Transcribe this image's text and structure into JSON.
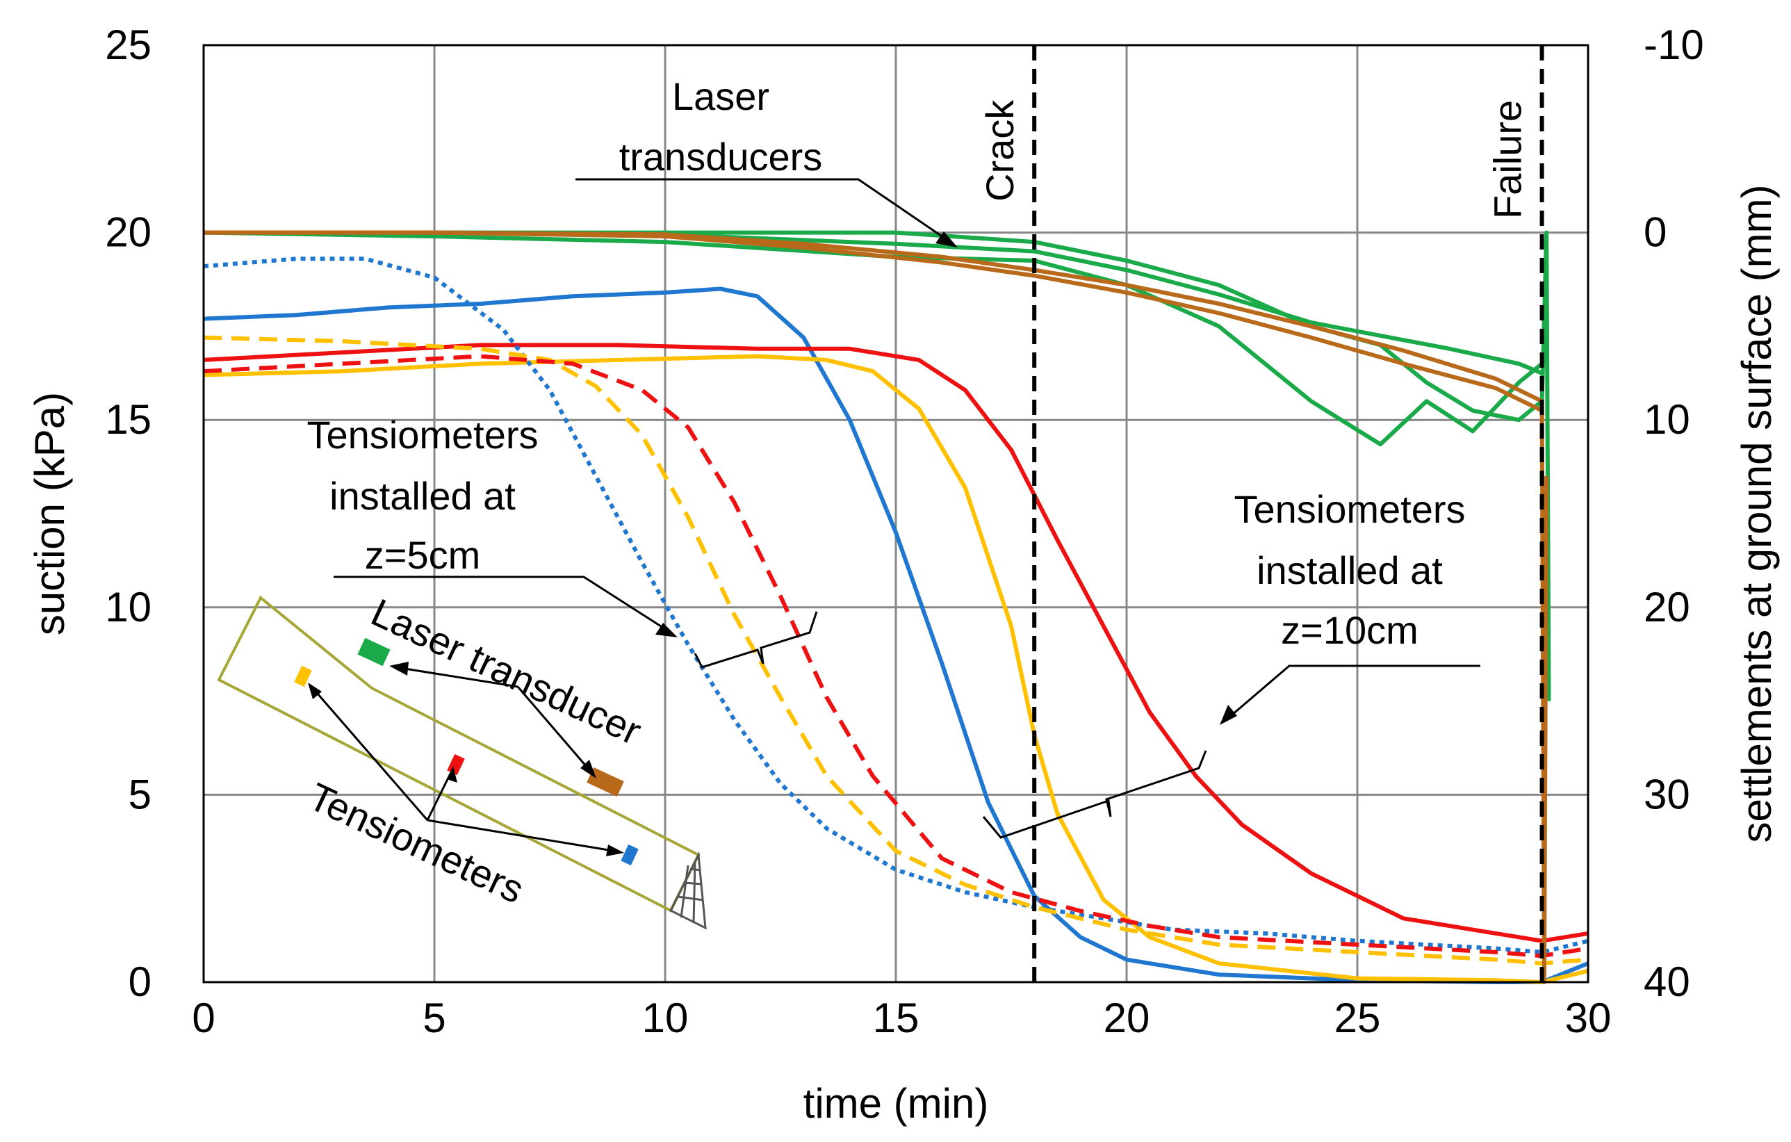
{
  "chart_data": {
    "type": "line",
    "title": "",
    "xlabel": "time (min)",
    "ylabel": "suction (kPa)",
    "y2label": "settlements at ground surface (mm)",
    "xlim": [
      0,
      30
    ],
    "ylim": [
      0,
      25
    ],
    "y2lim": [
      40,
      -10
    ],
    "xticks": [
      0,
      5,
      10,
      15,
      20,
      25,
      30
    ],
    "yticks": [
      0,
      5,
      10,
      15,
      20,
      25
    ],
    "y2ticks": [
      40,
      30,
      20,
      10,
      0,
      -10
    ],
    "grid": true,
    "colors": {
      "blue": "#1f77d0",
      "yellow": "#ffc000",
      "red": "#ee1111",
      "green": "#1aaa4a",
      "brown": "#b8691a",
      "inset": "#a6a638"
    },
    "series": [
      {
        "name": "Tensiometer blue z=10cm",
        "axis": "left",
        "color": "#1f77d0",
        "style": "solid",
        "x": [
          0,
          2,
          4,
          6,
          8,
          10,
          11.2,
          12,
          13,
          14,
          15,
          16,
          17,
          18,
          19,
          20,
          22,
          25,
          28,
          29,
          30
        ],
        "y": [
          17.7,
          17.8,
          18.0,
          18.1,
          18.3,
          18.4,
          18.5,
          18.3,
          17.2,
          15.0,
          12.0,
          8.5,
          4.8,
          2.3,
          1.2,
          0.6,
          0.2,
          0.05,
          0,
          0,
          0.5
        ]
      },
      {
        "name": "Tensiometer yellow z=10cm",
        "axis": "left",
        "color": "#ffc000",
        "style": "solid",
        "x": [
          0,
          3,
          6,
          9,
          12,
          13.5,
          14.5,
          15.5,
          16.5,
          17.5,
          18,
          18.5,
          19.5,
          20.5,
          22,
          25,
          28,
          29,
          30
        ],
        "y": [
          16.2,
          16.3,
          16.5,
          16.6,
          16.7,
          16.6,
          16.3,
          15.3,
          13.2,
          9.5,
          6.6,
          4.5,
          2.2,
          1.2,
          0.5,
          0.1,
          0.05,
          0,
          0.3
        ]
      },
      {
        "name": "Tensiometer red z=10cm",
        "axis": "left",
        "color": "#ee1111",
        "style": "solid",
        "x": [
          0,
          3,
          6,
          9,
          12,
          14,
          15.5,
          16.5,
          17.5,
          18.5,
          19.5,
          20.5,
          21.5,
          22.5,
          24,
          26,
          28,
          29,
          30
        ],
        "y": [
          16.6,
          16.8,
          17.0,
          17.0,
          16.9,
          16.9,
          16.6,
          15.8,
          14.2,
          11.8,
          9.5,
          7.2,
          5.5,
          4.2,
          2.9,
          1.7,
          1.3,
          1.1,
          1.3
        ]
      },
      {
        "name": "Tensiometer blue z=5cm",
        "axis": "left",
        "color": "#1f77d0",
        "style": "dotted",
        "x": [
          0,
          2,
          3.5,
          5,
          6.5,
          7.5,
          8.5,
          9.5,
          10.5,
          11.5,
          12.5,
          13.5,
          15,
          16.5,
          18,
          19.5,
          21,
          23,
          25,
          28,
          29,
          30
        ],
        "y": [
          19.1,
          19.3,
          19.3,
          18.8,
          17.4,
          15.8,
          13.5,
          11.2,
          9.0,
          7.0,
          5.3,
          4.1,
          3.0,
          2.4,
          2.0,
          1.7,
          1.4,
          1.3,
          1.1,
          0.9,
          0.8,
          1.1
        ]
      },
      {
        "name": "Tensiometer yellow z=5cm",
        "axis": "left",
        "color": "#ffc000",
        "style": "dashed",
        "x": [
          0,
          3,
          6,
          7.5,
          8.5,
          9.5,
          10.5,
          11.5,
          12.5,
          13.5,
          15,
          16.5,
          18,
          20,
          22,
          25,
          28,
          29,
          30
        ],
        "y": [
          17.2,
          17.1,
          16.9,
          16.6,
          15.9,
          14.6,
          12.4,
          9.8,
          7.6,
          5.5,
          3.5,
          2.6,
          2.0,
          1.4,
          1.0,
          0.8,
          0.6,
          0.5,
          0.6
        ]
      },
      {
        "name": "Tensiometer red z=5cm",
        "axis": "left",
        "color": "#ee1111",
        "style": "dashed",
        "x": [
          0,
          3,
          6,
          8,
          9.5,
          10.5,
          11.5,
          12.5,
          13.5,
          14.5,
          16,
          17.5,
          19,
          20.5,
          22,
          25,
          28,
          29,
          30
        ],
        "y": [
          16.3,
          16.5,
          16.7,
          16.5,
          15.8,
          14.8,
          12.8,
          10.3,
          7.6,
          5.5,
          3.3,
          2.4,
          1.9,
          1.5,
          1.2,
          1.0,
          0.8,
          0.7,
          0.9
        ]
      },
      {
        "name": "Laser transducer green 1",
        "axis": "right",
        "color": "#1aaa4a",
        "style": "solid",
        "x": [
          0,
          5,
          10,
          15,
          18,
          20,
          22,
          24,
          25.5,
          26.5,
          27.5,
          28.5,
          29,
          29.1,
          29.15
        ],
        "y": [
          0,
          0,
          0,
          0,
          0.5,
          1.5,
          2.8,
          5.0,
          6.0,
          8.0,
          9.5,
          10.0,
          9.0,
          0.0,
          25.0
        ]
      },
      {
        "name": "Laser transducer green 2",
        "axis": "right",
        "color": "#1aaa4a",
        "style": "solid",
        "x": [
          0,
          5,
          10,
          15,
          18,
          20,
          22,
          24,
          25.5,
          26.5,
          27.5,
          28.5,
          29
        ],
        "y": [
          0,
          0.2,
          0.5,
          1.3,
          1.5,
          2.8,
          5.0,
          9.0,
          11.3,
          9.0,
          10.6,
          8.0,
          7.0
        ]
      },
      {
        "name": "Laser transducer green 3",
        "axis": "right",
        "color": "#1aaa4a",
        "style": "solid",
        "x": [
          0,
          5,
          10,
          15,
          18,
          20,
          22,
          24,
          25.5,
          27,
          28.5,
          29
        ],
        "y": [
          0,
          0,
          0.1,
          0.6,
          1.0,
          2.0,
          3.3,
          4.8,
          5.5,
          6.2,
          7.0,
          7.5
        ]
      },
      {
        "name": "Laser transducer brown 1",
        "axis": "right",
        "color": "#b8691a",
        "style": "solid",
        "x": [
          0,
          5,
          10,
          13,
          16,
          18,
          20,
          22,
          24,
          26,
          28,
          29,
          29.05,
          29.1
        ],
        "y": [
          0,
          0,
          0.1,
          0.6,
          1.3,
          2.0,
          2.8,
          3.8,
          5.0,
          6.3,
          7.8,
          9.0,
          40.0,
          13.0
        ]
      },
      {
        "name": "Laser transducer brown 2",
        "axis": "right",
        "color": "#b8691a",
        "style": "solid",
        "x": [
          0,
          5,
          10,
          13,
          16,
          18,
          20,
          22,
          24,
          26,
          28,
          29
        ],
        "y": [
          0,
          0,
          0.2,
          0.8,
          1.6,
          2.3,
          3.2,
          4.3,
          5.6,
          7.0,
          8.3,
          9.5
        ]
      }
    ],
    "events": [
      {
        "label": "Crack",
        "x": 18
      },
      {
        "label": "Failure",
        "x": 29
      }
    ],
    "annotations": {
      "laser_group": [
        "Laser",
        "transducers"
      ],
      "tens5_group": [
        "Tensiometers",
        "installed at",
        "z=5cm"
      ],
      "tens10_group": [
        "Tensiometers",
        "installed at",
        "z=10cm"
      ],
      "inset_laser": "Laser transducer",
      "inset_tens": "Tensiometers"
    }
  }
}
